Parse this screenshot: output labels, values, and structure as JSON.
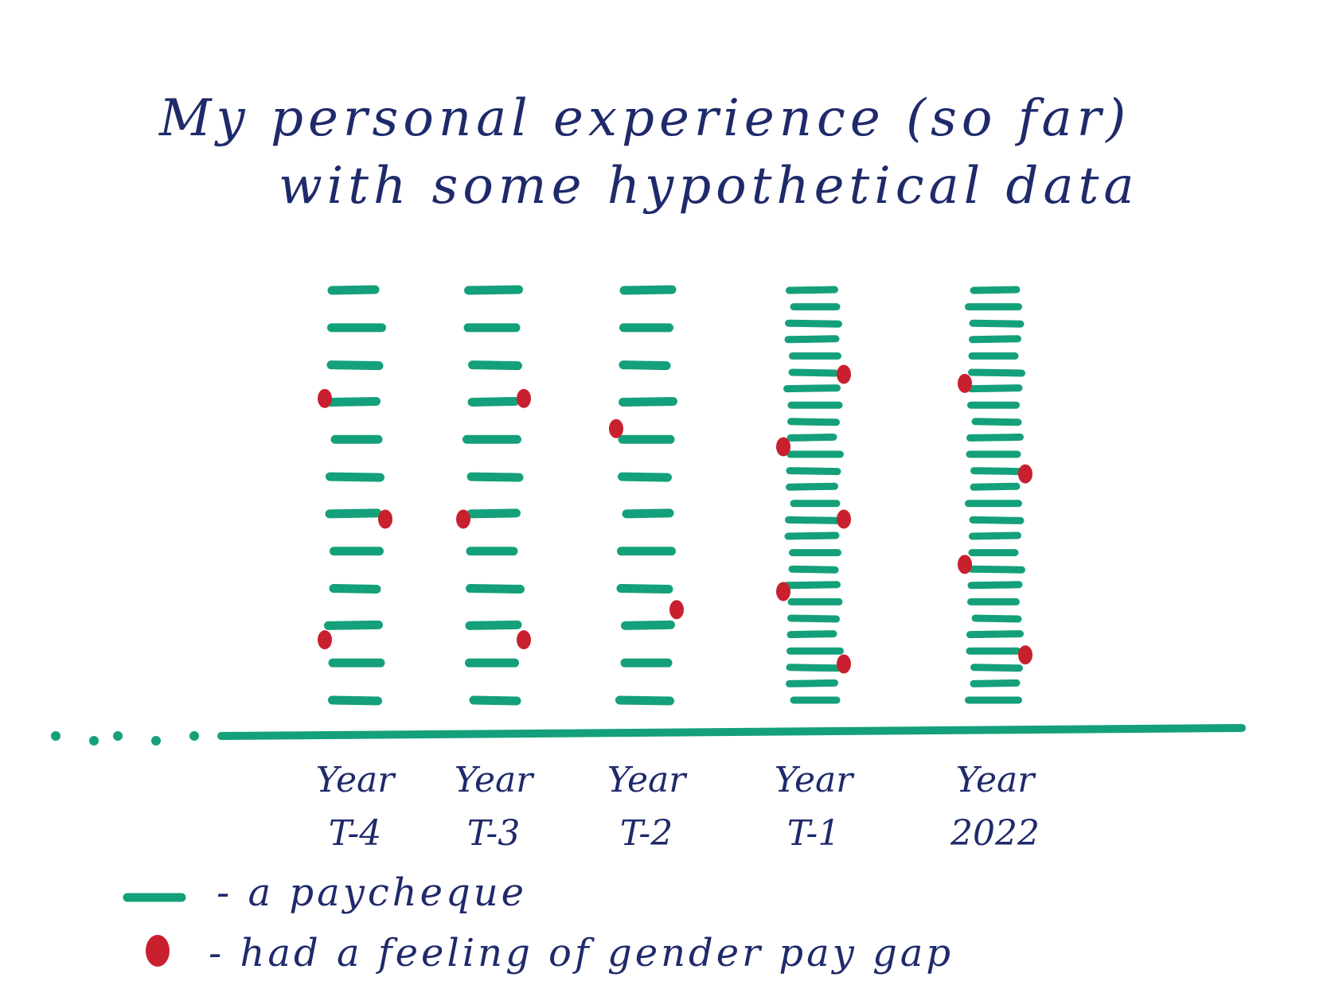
{
  "chart_data": {
    "type": "scatter",
    "title": "My personal experience (so far)",
    "subtitle": "with some hypothetical data",
    "categories": [
      {
        "top": "Year",
        "bottom": "T-4"
      },
      {
        "top": "Year",
        "bottom": "T-3"
      },
      {
        "top": "Year",
        "bottom": "T-2"
      },
      {
        "top": "Year",
        "bottom": "T-1"
      },
      {
        "top": "Year",
        "bottom": "2022"
      }
    ],
    "series": [
      {
        "name": "a paycheque",
        "values": [
          12,
          12,
          12,
          26,
          26
        ]
      },
      {
        "name": "had a feeling of gender pay gap",
        "values": [
          3,
          3,
          2,
          5,
          4
        ]
      }
    ],
    "legend": [
      {
        "marker": "paycheque",
        "label": "- a paycheque"
      },
      {
        "marker": "dot",
        "label": "- had a feeling of gender pay gap"
      }
    ],
    "xlabel": "",
    "ylabel": "",
    "grid": false,
    "legend_position": "bottom-left",
    "colors": {
      "paycheque": "#14a07a",
      "feeling": "#c8202e",
      "ink": "#1f2a6b"
    }
  }
}
